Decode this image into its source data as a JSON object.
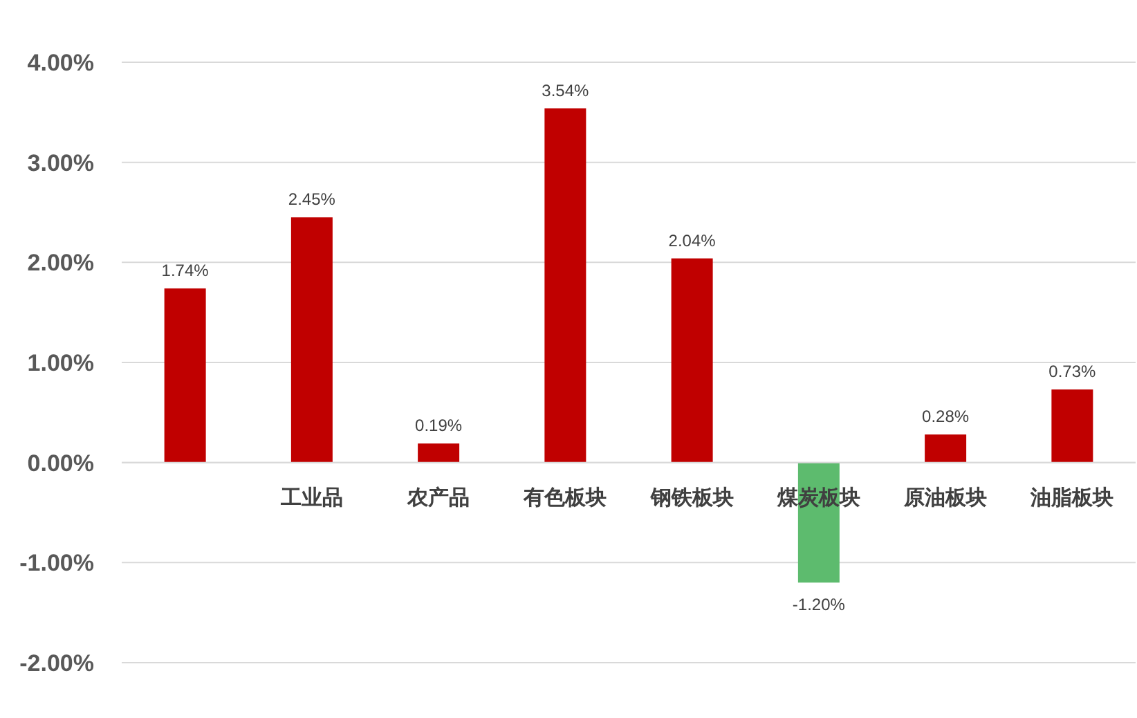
{
  "chart_data": {
    "type": "bar",
    "categories": [
      null,
      "工业品",
      "农产品",
      "有色板块",
      "钢铁板块",
      "煤炭板块",
      "原油板块",
      "油脂板块"
    ],
    "values": [
      1.74,
      2.45,
      0.19,
      3.54,
      2.04,
      -1.2,
      0.28,
      0.73
    ],
    "colors": [
      "#c00000",
      "#c00000",
      "#c00000",
      "#c00000",
      "#c00000",
      "#5dbb6e",
      "#c00000",
      "#c00000"
    ],
    "value_labels": [
      "1.74%",
      "2.45%",
      "0.19%",
      "3.54%",
      "2.04%",
      "-1.20%",
      "0.28%",
      "0.73%"
    ],
    "ylim": [
      -2,
      4
    ],
    "yticks": [
      {
        "value": -2,
        "label": "-2.00%"
      },
      {
        "value": -1,
        "label": "-1.00%"
      },
      {
        "value": 0,
        "label": "0.00%"
      },
      {
        "value": 1,
        "label": "1.00%"
      },
      {
        "value": 2,
        "label": "2.00%"
      },
      {
        "value": 3,
        "label": "3.00%"
      },
      {
        "value": 4,
        "label": "4.00%"
      }
    ],
    "grid": "y"
  }
}
